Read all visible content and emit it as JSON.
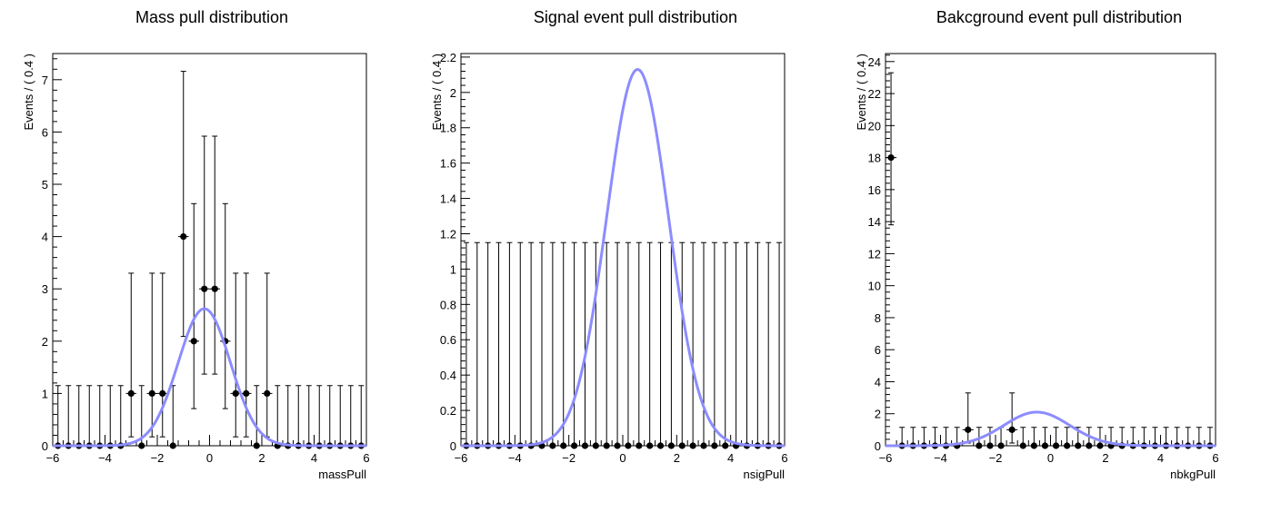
{
  "chart_data": [
    {
      "type": "scatter",
      "title": "Mass pull distribution",
      "xlabel": "massPull",
      "ylabel": "Events / ( 0.4 )",
      "xlim": [
        -6,
        6
      ],
      "ylim": [
        0,
        7.5
      ],
      "xticks": [
        -6,
        -4,
        -2,
        0,
        2,
        4,
        6
      ],
      "xtick_labels": [
        "−6",
        "−4",
        "−2",
        "0",
        "2",
        "4",
        "6"
      ],
      "yticks": [
        0,
        1,
        2,
        3,
        4,
        5,
        6,
        7
      ],
      "ytick_labels": [
        "0",
        "1",
        "2",
        "3",
        "4",
        "5",
        "6",
        "7"
      ],
      "bin_width": 0.4,
      "x": [
        -5.8,
        -5.4,
        -5.0,
        -4.6,
        -4.2,
        -3.8,
        -3.4,
        -3.0,
        -2.6,
        -2.2,
        -1.8,
        -1.4,
        -1.0,
        -0.6,
        -0.2,
        0.2,
        0.6,
        1.0,
        1.4,
        1.8,
        2.2,
        2.6,
        3.0,
        3.4,
        3.8,
        4.2,
        4.6,
        5.0,
        5.4,
        5.8
      ],
      "values": [
        0,
        0,
        0,
        0,
        0,
        0,
        0,
        1,
        0,
        1,
        1,
        0,
        4,
        2,
        3,
        3,
        2,
        1,
        1,
        0,
        1,
        0,
        0,
        0,
        0,
        0,
        0,
        0,
        0,
        0
      ],
      "err_low": [
        0,
        0,
        0,
        0,
        0,
        0,
        0,
        0.83,
        0,
        0.83,
        0.83,
        0,
        1.91,
        1.29,
        1.63,
        1.63,
        1.29,
        0.83,
        0.83,
        0,
        0.83,
        0,
        0,
        0,
        0,
        0,
        0,
        0,
        0,
        0
      ],
      "err_high": [
        1.15,
        1.15,
        1.15,
        1.15,
        1.15,
        1.15,
        1.15,
        2.3,
        1.15,
        2.3,
        2.3,
        1.15,
        3.16,
        2.63,
        2.92,
        2.92,
        2.63,
        2.3,
        2.3,
        1.15,
        2.3,
        1.15,
        1.15,
        1.15,
        1.15,
        1.15,
        1.15,
        1.15,
        1.15,
        1.15
      ],
      "fit": {
        "type": "gaussian",
        "amplitude": 2.62,
        "mean": -0.2,
        "sigma": 1.0,
        "color": "#8c8cff"
      }
    },
    {
      "type": "scatter",
      "title": "Signal event pull distribution",
      "xlabel": "nsigPull",
      "ylabel": "Events / ( 0.4 )",
      "xlim": [
        -6,
        6
      ],
      "ylim": [
        0,
        2.22
      ],
      "xticks": [
        -6,
        -4,
        -2,
        0,
        2,
        4,
        6
      ],
      "xtick_labels": [
        "−6",
        "−4",
        "−2",
        "0",
        "2",
        "4",
        "6"
      ],
      "yticks": [
        0,
        0.2,
        0.4,
        0.6,
        0.8,
        1,
        1.2,
        1.4,
        1.6,
        1.8,
        2,
        2.2
      ],
      "ytick_labels": [
        "0",
        "0.2",
        "0.4",
        "0.6",
        "0.8",
        "1",
        "1.2",
        "1.4",
        "1.6",
        "1.8",
        "2",
        "2.2"
      ],
      "bin_width": 0.4,
      "x": [
        -5.8,
        -5.4,
        -5.0,
        -4.6,
        -4.2,
        -3.8,
        -3.4,
        -3.0,
        -2.6,
        -2.2,
        -1.8,
        -1.4,
        -1.0,
        -0.6,
        -0.2,
        0.2,
        0.6,
        1.0,
        1.4,
        1.8,
        2.2,
        2.6,
        3.0,
        3.4,
        3.8,
        4.2,
        4.6,
        5.0,
        5.4,
        5.8
      ],
      "values": [
        0,
        0,
        0,
        0,
        0,
        0,
        0,
        0,
        0,
        0,
        0,
        0,
        0,
        0,
        0,
        0,
        0,
        0,
        0,
        0,
        0,
        0,
        0,
        0,
        0,
        0,
        0,
        0,
        0,
        0
      ],
      "err_low": [
        0,
        0,
        0,
        0,
        0,
        0,
        0,
        0,
        0,
        0,
        0,
        0,
        0,
        0,
        0,
        0,
        0,
        0,
        0,
        0,
        0,
        0,
        0,
        0,
        0,
        0,
        0,
        0,
        0,
        0
      ],
      "err_high": [
        1.15,
        1.15,
        1.15,
        1.15,
        1.15,
        1.15,
        1.15,
        1.15,
        1.15,
        1.15,
        1.15,
        1.15,
        1.15,
        1.15,
        1.15,
        1.15,
        1.15,
        1.15,
        1.15,
        1.15,
        1.15,
        1.15,
        1.15,
        1.15,
        1.15,
        1.15,
        1.15,
        1.15,
        1.15,
        1.15
      ],
      "fit": {
        "type": "gaussian",
        "amplitude": 2.13,
        "mean": 0.55,
        "sigma": 1.15,
        "color": "#8c8cff"
      }
    },
    {
      "type": "scatter",
      "title": "Bakcground event pull distribution",
      "xlabel": "nbkgPull",
      "ylabel": "Events / ( 0.4 )",
      "xlim": [
        -6,
        6
      ],
      "ylim": [
        0,
        24.5
      ],
      "xticks": [
        -6,
        -4,
        -2,
        0,
        2,
        4,
        6
      ],
      "xtick_labels": [
        "−6",
        "−4",
        "−2",
        "0",
        "2",
        "4",
        "6"
      ],
      "yticks": [
        0,
        2,
        4,
        6,
        8,
        10,
        12,
        14,
        16,
        18,
        20,
        22,
        24
      ],
      "ytick_labels": [
        "0",
        "2",
        "4",
        "6",
        "8",
        "10",
        "12",
        "14",
        "16",
        "18",
        "20",
        "22",
        "24"
      ],
      "bin_width": 0.4,
      "x": [
        -5.8,
        -5.4,
        -5.0,
        -4.6,
        -4.2,
        -3.8,
        -3.4,
        -3.0,
        -2.6,
        -2.2,
        -1.8,
        -1.4,
        -1.0,
        -0.6,
        -0.2,
        0.2,
        0.6,
        1.0,
        1.4,
        1.8,
        2.2,
        2.6,
        3.0,
        3.4,
        3.8,
        4.2,
        4.6,
        5.0,
        5.4,
        5.8
      ],
      "values": [
        18,
        0,
        0,
        0,
        0,
        0,
        0,
        1,
        0,
        0,
        0,
        1,
        0,
        0,
        0,
        0,
        0,
        0,
        0,
        0,
        0,
        0,
        0,
        0,
        0,
        0,
        0,
        0,
        0,
        0
      ],
      "err_low": [
        4.2,
        0,
        0,
        0,
        0,
        0,
        0,
        0.83,
        0,
        0,
        0,
        0.83,
        0,
        0,
        0,
        0,
        0,
        0,
        0,
        0,
        0,
        0,
        0,
        0,
        0,
        0,
        0,
        0,
        0,
        0
      ],
      "err_high": [
        5.3,
        1.15,
        1.15,
        1.15,
        1.15,
        1.15,
        1.15,
        2.3,
        1.15,
        1.15,
        1.15,
        2.3,
        1.15,
        1.15,
        1.15,
        1.15,
        1.15,
        1.15,
        1.15,
        1.15,
        1.15,
        1.15,
        1.15,
        1.15,
        1.15,
        1.15,
        1.15,
        1.15,
        1.15,
        1.15
      ],
      "fit": {
        "type": "gaussian",
        "amplitude": 2.1,
        "mean": -0.5,
        "sigma": 1.2,
        "color": "#8c8cff"
      }
    }
  ]
}
